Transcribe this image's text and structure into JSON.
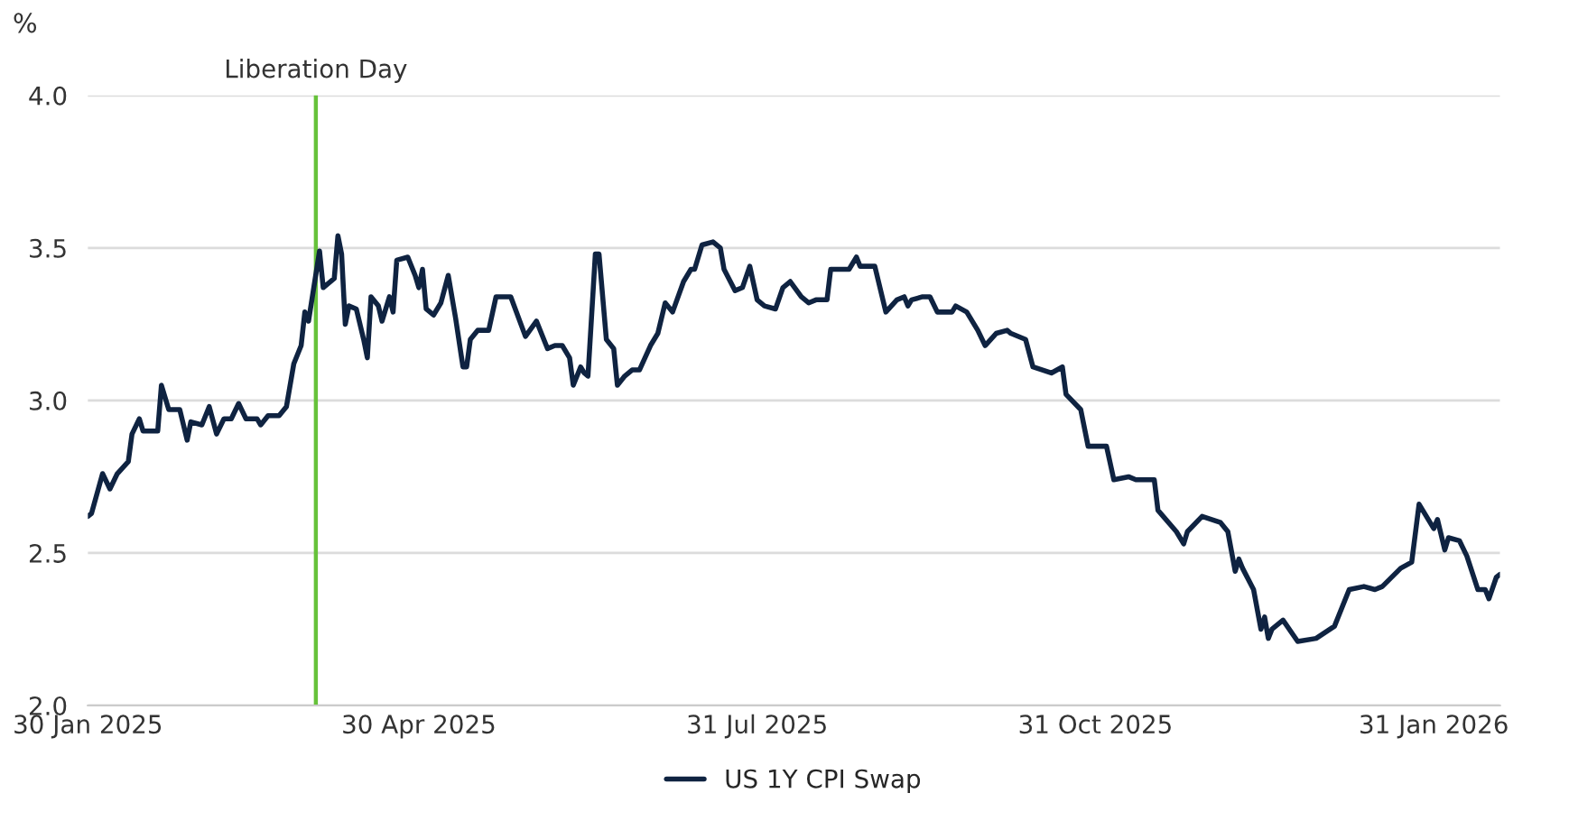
{
  "chart_data": {
    "type": "line",
    "ylabel": "%",
    "x": [
      "2025-01-30",
      "2025-01-31",
      "2025-02-03",
      "2025-02-05",
      "2025-02-07",
      "2025-02-10",
      "2025-02-11",
      "2025-02-13",
      "2025-02-14",
      "2025-02-18",
      "2025-02-19",
      "2025-02-21",
      "2025-02-24",
      "2025-02-26",
      "2025-02-27",
      "2025-03-02",
      "2025-03-04",
      "2025-03-06",
      "2025-03-08",
      "2025-03-10",
      "2025-03-12",
      "2025-03-14",
      "2025-03-17",
      "2025-03-18",
      "2025-03-20",
      "2025-03-23",
      "2025-03-25",
      "2025-03-27",
      "2025-03-29",
      "2025-03-30",
      "2025-03-31",
      "2025-04-03",
      "2025-04-04",
      "2025-04-07",
      "2025-04-08",
      "2025-04-09",
      "2025-04-10",
      "2025-04-11",
      "2025-04-13",
      "2025-04-15",
      "2025-04-16",
      "2025-04-17",
      "2025-04-19",
      "2025-04-20",
      "2025-04-22",
      "2025-04-23",
      "2025-04-24",
      "2025-04-27",
      "2025-04-29",
      "2025-04-30",
      "2025-05-01",
      "2025-05-02",
      "2025-05-04",
      "2025-05-06",
      "2025-05-08",
      "2025-05-10",
      "2025-05-12",
      "2025-05-13",
      "2025-05-14",
      "2025-05-16",
      "2025-05-19",
      "2025-05-21",
      "2025-05-25",
      "2025-05-29",
      "2025-06-01",
      "2025-06-04",
      "2025-06-06",
      "2025-06-08",
      "2025-06-10",
      "2025-06-11",
      "2025-06-13",
      "2025-06-14",
      "2025-06-15",
      "2025-06-17",
      "2025-06-18",
      "2025-06-20",
      "2025-06-22",
      "2025-06-23",
      "2025-06-25",
      "2025-06-27",
      "2025-06-29",
      "2025-07-02",
      "2025-07-04",
      "2025-07-06",
      "2025-07-08",
      "2025-07-11",
      "2025-07-13",
      "2025-07-14",
      "2025-07-16",
      "2025-07-19",
      "2025-07-21",
      "2025-07-22",
      "2025-07-25",
      "2025-07-27",
      "2025-07-29",
      "2025-07-31",
      "2025-08-02",
      "2025-08-05",
      "2025-08-07",
      "2025-08-09",
      "2025-08-12",
      "2025-08-14",
      "2025-08-16",
      "2025-08-19",
      "2025-08-20",
      "2025-08-25",
      "2025-08-27",
      "2025-08-28",
      "2025-09-01",
      "2025-09-04",
      "2025-09-07",
      "2025-09-09",
      "2025-09-10",
      "2025-09-11",
      "2025-09-14",
      "2025-09-16",
      "2025-09-18",
      "2025-09-22",
      "2025-09-23",
      "2025-09-26",
      "2025-09-29",
      "2025-10-01",
      "2025-10-04",
      "2025-10-07",
      "2025-10-08",
      "2025-10-12",
      "2025-10-14",
      "2025-10-19",
      "2025-10-22",
      "2025-10-23",
      "2025-10-27",
      "2025-10-29",
      "2025-11-03",
      "2025-11-05",
      "2025-11-09",
      "2025-11-11",
      "2025-11-16",
      "2025-11-17",
      "2025-11-22",
      "2025-11-24",
      "2025-11-25",
      "2025-11-29",
      "2025-12-04",
      "2025-12-06",
      "2025-12-08",
      "2025-12-09",
      "2025-12-10",
      "2025-12-13",
      "2025-12-15",
      "2025-12-16",
      "2025-12-17",
      "2025-12-18",
      "2025-12-21",
      "2025-12-25",
      "2025-12-30",
      "2026-01-04",
      "2026-01-08",
      "2026-01-12",
      "2026-01-15",
      "2026-01-17",
      "2026-01-22",
      "2026-01-25",
      "2026-01-27",
      "2026-01-31",
      "2026-02-01",
      "2026-02-03",
      "2026-02-04",
      "2026-02-07",
      "2026-02-09",
      "2026-02-12",
      "2026-02-14",
      "2026-02-15",
      "2026-02-17",
      "2026-02-18"
    ],
    "series": [
      {
        "name": "US 1Y CPI Swap",
        "color": "#0f2341",
        "values": [
          2.62,
          2.63,
          2.76,
          2.71,
          2.76,
          2.8,
          2.89,
          2.94,
          2.9,
          2.9,
          3.05,
          2.97,
          2.97,
          2.87,
          2.93,
          2.92,
          2.98,
          2.89,
          2.94,
          2.94,
          2.99,
          2.94,
          2.94,
          2.92,
          2.95,
          2.95,
          2.98,
          3.12,
          3.18,
          3.29,
          3.26,
          3.49,
          3.37,
          3.4,
          3.54,
          3.48,
          3.25,
          3.31,
          3.3,
          3.2,
          3.14,
          3.34,
          3.31,
          3.26,
          3.34,
          3.29,
          3.46,
          3.47,
          3.41,
          3.37,
          3.43,
          3.3,
          3.28,
          3.32,
          3.41,
          3.27,
          3.11,
          3.11,
          3.2,
          3.23,
          3.23,
          3.34,
          3.34,
          3.21,
          3.26,
          3.17,
          3.18,
          3.18,
          3.14,
          3.05,
          3.11,
          3.09,
          3.08,
          3.48,
          3.48,
          3.2,
          3.17,
          3.05,
          3.08,
          3.1,
          3.1,
          3.18,
          3.22,
          3.32,
          3.29,
          3.39,
          3.43,
          3.43,
          3.51,
          3.52,
          3.5,
          3.43,
          3.36,
          3.37,
          3.44,
          3.33,
          3.31,
          3.3,
          3.37,
          3.39,
          3.34,
          3.32,
          3.33,
          3.33,
          3.43,
          3.43,
          3.47,
          3.44,
          3.44,
          3.29,
          3.33,
          3.34,
          3.31,
          3.33,
          3.34,
          3.34,
          3.29,
          3.29,
          3.31,
          3.29,
          3.23,
          3.18,
          3.22,
          3.23,
          3.22,
          3.2,
          3.11,
          3.09,
          3.11,
          3.02,
          2.97,
          2.85,
          2.85,
          2.74,
          2.75,
          2.74,
          2.74,
          2.64,
          2.57,
          2.53,
          2.57,
          2.62,
          2.6,
          2.57,
          2.44,
          2.48,
          2.45,
          2.38,
          2.25,
          2.29,
          2.22,
          2.25,
          2.28,
          2.21,
          2.22,
          2.26,
          2.38,
          2.39,
          2.38,
          2.39,
          2.45,
          2.47,
          2.66,
          2.58,
          2.61,
          2.51,
          2.55,
          2.54,
          2.49,
          2.38,
          2.38,
          2.35,
          2.42,
          2.43
        ]
      }
    ],
    "xlim": [
      "2025-01-30",
      "2026-02-18"
    ],
    "xticks": [
      {
        "value": "2025-01-30",
        "label": "30 Jan 2025"
      },
      {
        "value": "2025-04-30",
        "label": "30 Apr 2025"
      },
      {
        "value": "2025-07-31",
        "label": "31 Jul 2025"
      },
      {
        "value": "2025-10-31",
        "label": "31 Oct 2025"
      },
      {
        "value": "2026-01-31",
        "label": "31 Jan 2026"
      }
    ],
    "ylim": [
      2.0,
      4.0
    ],
    "yticks": [
      {
        "value": 2.0,
        "label": "2.0"
      },
      {
        "value": 2.5,
        "label": "2.5"
      },
      {
        "value": 3.0,
        "label": "3.0"
      },
      {
        "value": 3.5,
        "label": "3.5"
      },
      {
        "value": 4.0,
        "label": "4.0"
      }
    ],
    "ref_lines": [
      {
        "axis": "x",
        "value": "2025-04-02",
        "label": "Liberation Day",
        "color": "#66c23a"
      }
    ],
    "grid": "y",
    "legend": "bottom",
    "line_style": "solid"
  }
}
